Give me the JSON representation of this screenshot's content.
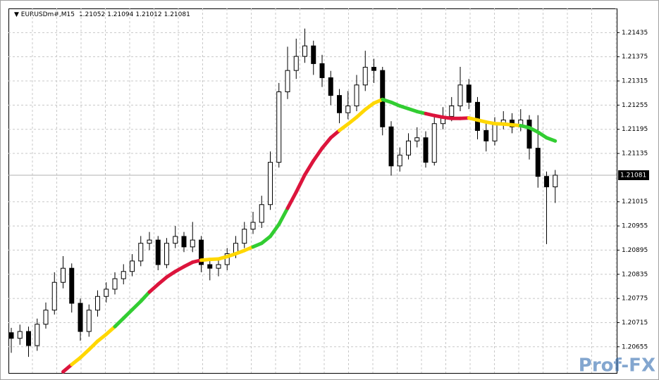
{
  "chart_data": {
    "type": "candlestick",
    "title": "EURUSDm#,M15",
    "open": [
      1.2069,
      1.20676,
      1.20693,
      1.20658,
      1.20711,
      1.20746,
      1.20815,
      1.2085,
      1.20763,
      1.20693,
      1.20746,
      1.2078,
      1.20798,
      1.20824,
      1.20842,
      1.20868,
      1.20912,
      1.2092,
      1.20859,
      1.20912,
      1.20929,
      1.20903,
      1.2092,
      1.20859,
      1.2085,
      1.20859,
      1.20886,
      1.20912,
      1.20947,
      1.20964,
      1.21008,
      1.21113,
      1.21288,
      1.21341,
      1.21376,
      1.21402,
      1.21358,
      1.21323,
      1.21279,
      1.21236,
      1.21253,
      1.21305,
      1.21349,
      1.21341,
      1.21201,
      1.21104,
      1.21131,
      1.21166,
      1.21174,
      1.21113,
      1.21209,
      1.21227,
      1.21253,
      1.21305,
      1.21262,
      1.21192,
      1.21166,
      1.21209,
      1.21218,
      1.21201,
      1.21218,
      1.21148,
      1.21078,
      1.21052
    ],
    "high": [
      1.20702,
      1.2071,
      1.20705,
      1.20725,
      1.20765,
      1.2084,
      1.2088,
      1.20862,
      1.20775,
      1.2076,
      1.20795,
      1.20815,
      1.2084,
      1.2086,
      1.20885,
      1.2093,
      1.2094,
      1.2093,
      1.20925,
      1.20955,
      1.2094,
      1.20965,
      1.2093,
      1.2087,
      1.20875,
      1.209,
      1.2093,
      1.20965,
      1.2099,
      1.2103,
      1.2114,
      1.2131,
      1.214,
      1.2142,
      1.21445,
      1.21415,
      1.2138,
      1.2134,
      1.21295,
      1.2129,
      1.2133,
      1.2139,
      1.2137,
      1.2135,
      1.21215,
      1.2115,
      1.21185,
      1.212,
      1.2119,
      1.21225,
      1.2125,
      1.21275,
      1.2135,
      1.2132,
      1.21275,
      1.2121,
      1.21225,
      1.2124,
      1.21235,
      1.21245,
      1.2123,
      1.2123,
      1.2109,
      1.21094
    ],
    "low": [
      1.2064,
      1.2066,
      1.2063,
      1.20645,
      1.207,
      1.20735,
      1.208,
      1.2074,
      1.2067,
      1.2068,
      1.2073,
      1.20765,
      1.20785,
      1.2081,
      1.2083,
      1.20855,
      1.20895,
      1.20845,
      1.2085,
      1.209,
      1.2089,
      1.2089,
      1.2084,
      1.2082,
      1.2083,
      1.20845,
      1.20875,
      1.209,
      1.20935,
      1.2095,
      1.20995,
      1.211,
      1.2127,
      1.2132,
      1.2136,
      1.2133,
      1.213,
      1.21255,
      1.2121,
      1.2122,
      1.2124,
      1.2129,
      1.2131,
      1.2118,
      1.2108,
      1.2109,
      1.2112,
      1.2115,
      1.211,
      1.21105,
      1.21195,
      1.21215,
      1.2124,
      1.21245,
      1.2117,
      1.2114,
      1.21155,
      1.21195,
      1.21185,
      1.2119,
      1.2112,
      1.2105,
      1.2091,
      1.21012
    ],
    "close": [
      1.20676,
      1.20693,
      1.20658,
      1.20711,
      1.20746,
      1.20815,
      1.2085,
      1.20763,
      1.20693,
      1.20746,
      1.2078,
      1.20798,
      1.20824,
      1.20842,
      1.20868,
      1.20912,
      1.2092,
      1.20859,
      1.20912,
      1.20929,
      1.20903,
      1.2092,
      1.20859,
      1.2085,
      1.20859,
      1.20886,
      1.20912,
      1.20947,
      1.20964,
      1.21008,
      1.21113,
      1.21288,
      1.21341,
      1.21376,
      1.21402,
      1.21358,
      1.21323,
      1.21279,
      1.21236,
      1.21253,
      1.21305,
      1.21349,
      1.21341,
      1.21201,
      1.21104,
      1.21131,
      1.21166,
      1.21174,
      1.21113,
      1.21209,
      1.21227,
      1.21253,
      1.21305,
      1.21262,
      1.21192,
      1.21166,
      1.21209,
      1.21218,
      1.21201,
      1.21218,
      1.21148,
      1.21078,
      1.21052,
      1.21081
    ],
    "ma": {
      "values": [
        null,
        null,
        null,
        null,
        null,
        null,
        1.20593,
        1.20611,
        1.20628,
        1.20648,
        1.20669,
        1.20686,
        1.20705,
        1.20726,
        1.20747,
        1.20768,
        1.20791,
        1.2081,
        1.20828,
        1.20842,
        1.20854,
        1.20865,
        1.2087,
        1.20872,
        1.20873,
        1.20879,
        1.20886,
        1.20894,
        1.20903,
        1.20912,
        1.20929,
        1.20959,
        1.20999,
        1.21039,
        1.21082,
        1.21117,
        1.21148,
        1.21174,
        1.21192,
        1.21208,
        1.21225,
        1.21244,
        1.2126,
        1.21269,
        1.21262,
        1.21253,
        1.21246,
        1.21239,
        1.21234,
        1.21229,
        1.21225,
        1.21222,
        1.21222,
        1.21223,
        1.21218,
        1.21213,
        1.21209,
        1.21208,
        1.21206,
        1.21204,
        1.21199,
        1.21188,
        1.21174,
        1.21166
      ],
      "colors": [
        null,
        null,
        null,
        null,
        null,
        null,
        "#dc143c",
        "#dc143c",
        "#ffd700",
        "#ffd700",
        "#ffd700",
        "#ffd700",
        "#ffd700",
        "#32cd32",
        "#32cd32",
        "#32cd32",
        "#32cd32",
        "#dc143c",
        "#dc143c",
        "#dc143c",
        "#dc143c",
        "#dc143c",
        "#dc143c",
        "#ffd700",
        "#ffd700",
        "#ffd700",
        "#ffd700",
        "#ffd700",
        "#ffd700",
        "#32cd32",
        "#32cd32",
        "#32cd32",
        "#32cd32",
        "#dc143c",
        "#dc143c",
        "#dc143c",
        "#dc143c",
        "#dc143c",
        "#dc143c",
        "#ffd700",
        "#ffd700",
        "#ffd700",
        "#ffd700",
        "#ffd700",
        "#32cd32",
        "#32cd32",
        "#32cd32",
        "#32cd32",
        "#32cd32",
        "#dc143c",
        "#dc143c",
        "#dc143c",
        "#dc143c",
        "#dc143c",
        "#ffd700",
        "#ffd700",
        "#ffd700",
        "#ffd700",
        "#ffd700",
        "#ffd700",
        "#32cd32",
        "#32cd32",
        "#32cd32",
        "#32cd32"
      ]
    },
    "up_color": "#ffffff",
    "down_color": "#000000",
    "ylim": [
      1.2059,
      1.21495
    ],
    "yticks": [
      1.20655,
      1.20715,
      1.20775,
      1.20835,
      1.20895,
      1.20955,
      1.21015,
      1.21135,
      1.21195,
      1.21255,
      1.21315,
      1.21375,
      1.21435
    ],
    "current_price": 1.21081,
    "grid": true,
    "watermark": "Prof-FX"
  }
}
